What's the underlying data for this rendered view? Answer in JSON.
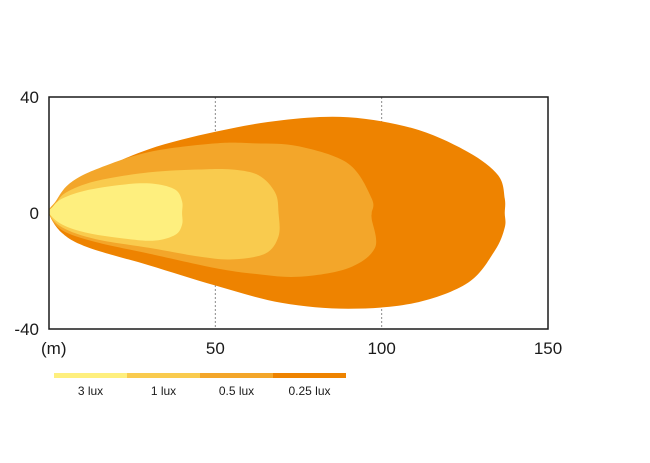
{
  "chart_data": {
    "type": "area",
    "x_unit_label": "(m)",
    "x_ticks": [
      50,
      100,
      150
    ],
    "y_ticks": [
      40,
      0,
      -40
    ],
    "xlim": [
      0,
      150
    ],
    "ylim": [
      -40,
      40
    ],
    "grid": "vertical dotted",
    "legend_placement": "bottom-left",
    "series": [
      {
        "name": "0.25 lux",
        "color": "#EE8300",
        "outline": [
          [
            0,
            0
          ],
          [
            4,
            -7
          ],
          [
            12,
            -12
          ],
          [
            30,
            -18
          ],
          [
            50,
            -25
          ],
          [
            70,
            -31
          ],
          [
            90,
            -33
          ],
          [
            110,
            -31
          ],
          [
            126,
            -24
          ],
          [
            134,
            -13
          ],
          [
            137,
            -5
          ],
          [
            137,
            0
          ],
          [
            137,
            5
          ],
          [
            135,
            13
          ],
          [
            126,
            21
          ],
          [
            110,
            29
          ],
          [
            90,
            33
          ],
          [
            70,
            32
          ],
          [
            50,
            28
          ],
          [
            30,
            22
          ],
          [
            14,
            14
          ],
          [
            6,
            8
          ],
          [
            2,
            3
          ]
        ]
      },
      {
        "name": "0.5 lux",
        "color": "#F3A62A",
        "outline": [
          [
            0,
            0
          ],
          [
            4,
            -6
          ],
          [
            14,
            -10
          ],
          [
            30,
            -14
          ],
          [
            50,
            -19
          ],
          [
            62,
            -21
          ],
          [
            75,
            -22
          ],
          [
            90,
            -19
          ],
          [
            98,
            -12
          ],
          [
            97,
            -2
          ],
          [
            97,
            0
          ],
          [
            97,
            5
          ],
          [
            90,
            17
          ],
          [
            75,
            23
          ],
          [
            62,
            24
          ],
          [
            50,
            24
          ],
          [
            30,
            21
          ],
          [
            14,
            15
          ],
          [
            6,
            10
          ],
          [
            2,
            4
          ]
        ]
      },
      {
        "name": "1 lux",
        "color": "#F9CB4E",
        "outline": [
          [
            0,
            0
          ],
          [
            4,
            -5
          ],
          [
            14,
            -9
          ],
          [
            30,
            -12
          ],
          [
            45,
            -15
          ],
          [
            55,
            -16
          ],
          [
            65,
            -14
          ],
          [
            69,
            -8
          ],
          [
            69,
            0
          ],
          [
            68,
            7
          ],
          [
            63,
            13
          ],
          [
            55,
            15
          ],
          [
            45,
            15
          ],
          [
            30,
            14
          ],
          [
            14,
            11
          ],
          [
            5,
            7
          ],
          [
            2,
            3
          ]
        ]
      },
      {
        "name": "3 lux",
        "color": "#FEEF7E",
        "outline": [
          [
            0,
            0
          ],
          [
            4,
            -4
          ],
          [
            12,
            -7
          ],
          [
            24,
            -9
          ],
          [
            32,
            -9.5
          ],
          [
            38,
            -7.5
          ],
          [
            40,
            -4
          ],
          [
            40,
            0
          ],
          [
            40,
            4
          ],
          [
            38,
            8
          ],
          [
            32,
            10
          ],
          [
            24,
            10
          ],
          [
            12,
            8
          ],
          [
            4,
            5
          ],
          [
            1,
            2
          ]
        ]
      }
    ],
    "legend": [
      {
        "name": "3 lux",
        "color": "#FEEF7E"
      },
      {
        "name": "1 lux",
        "color": "#F9CB4E"
      },
      {
        "name": "0.5 lux",
        "color": "#F3A62A"
      },
      {
        "name": "0.25 lux",
        "color": "#EE8300"
      }
    ]
  }
}
